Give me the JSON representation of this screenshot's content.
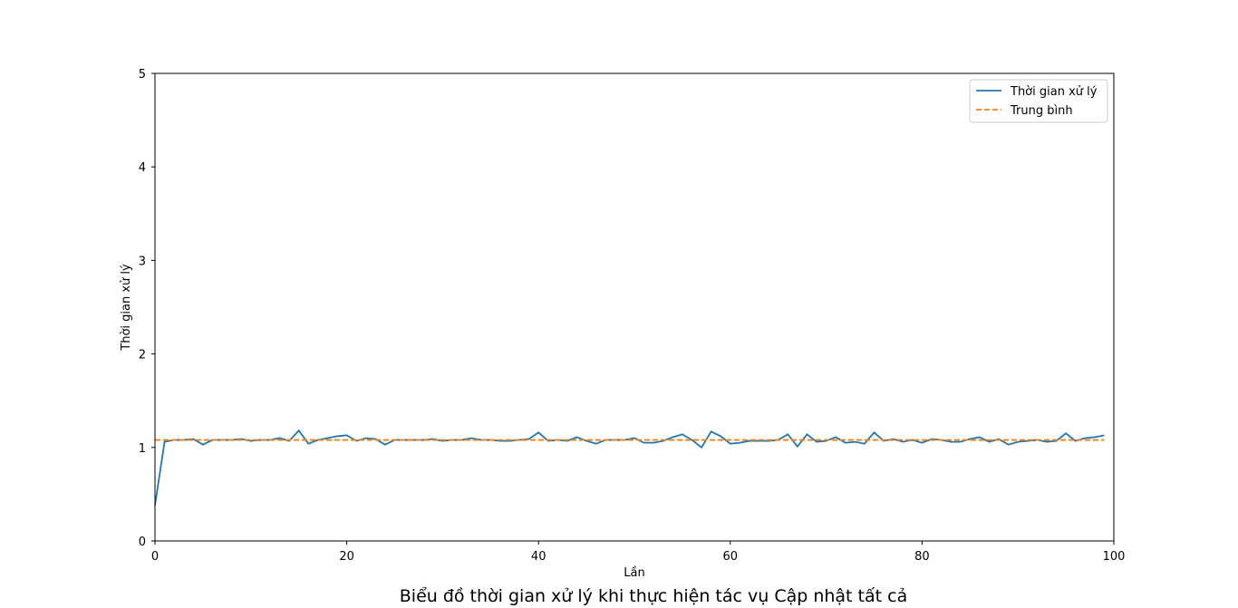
{
  "chart_data": {
    "type": "line",
    "title": "Biểu đồ thời gian xử lý khi thực hiện tác vụ Cập nhật tất cả",
    "xlabel": "Lần",
    "ylabel": "Thời gian xử lý",
    "xlim": [
      0,
      100
    ],
    "ylim": [
      0,
      5
    ],
    "xticks": [
      "0",
      "20",
      "40",
      "60",
      "80",
      "100"
    ],
    "yticks": [
      "0",
      "1",
      "2",
      "3",
      "4",
      "5"
    ],
    "grid": false,
    "legend_position": "top-right",
    "series": [
      {
        "name": "Thời gian xử lý",
        "style": "solid",
        "color": "#1f77b4",
        "x": [
          0,
          1,
          2,
          3,
          4,
          5,
          6,
          7,
          8,
          9,
          10,
          11,
          12,
          13,
          14,
          15,
          16,
          17,
          18,
          19,
          20,
          21,
          22,
          23,
          24,
          25,
          26,
          27,
          28,
          29,
          30,
          31,
          32,
          33,
          34,
          35,
          36,
          37,
          38,
          39,
          40,
          41,
          42,
          43,
          44,
          45,
          46,
          47,
          48,
          49,
          50,
          51,
          52,
          53,
          54,
          55,
          56,
          57,
          58,
          59,
          60,
          61,
          62,
          63,
          64,
          65,
          66,
          67,
          68,
          69,
          70,
          71,
          72,
          73,
          74,
          75,
          76,
          77,
          78,
          79,
          80,
          81,
          82,
          83,
          84,
          85,
          86,
          87,
          88,
          89,
          90,
          91,
          92,
          93,
          94,
          95,
          96,
          97,
          98,
          99
        ],
        "values": [
          0.38,
          1.06,
          1.08,
          1.08,
          1.09,
          1.03,
          1.08,
          1.08,
          1.08,
          1.09,
          1.07,
          1.08,
          1.08,
          1.1,
          1.07,
          1.18,
          1.04,
          1.08,
          1.1,
          1.12,
          1.13,
          1.07,
          1.1,
          1.09,
          1.03,
          1.08,
          1.08,
          1.08,
          1.08,
          1.09,
          1.07,
          1.08,
          1.08,
          1.1,
          1.08,
          1.08,
          1.07,
          1.07,
          1.08,
          1.09,
          1.16,
          1.07,
          1.08,
          1.07,
          1.11,
          1.07,
          1.04,
          1.08,
          1.08,
          1.08,
          1.1,
          1.05,
          1.05,
          1.07,
          1.11,
          1.14,
          1.08,
          1.0,
          1.17,
          1.12,
          1.04,
          1.05,
          1.07,
          1.07,
          1.07,
          1.08,
          1.14,
          1.01,
          1.14,
          1.06,
          1.07,
          1.11,
          1.05,
          1.06,
          1.04,
          1.16,
          1.07,
          1.09,
          1.06,
          1.08,
          1.05,
          1.09,
          1.08,
          1.06,
          1.06,
          1.09,
          1.11,
          1.06,
          1.09,
          1.03,
          1.06,
          1.07,
          1.08,
          1.06,
          1.07,
          1.15,
          1.07,
          1.1,
          1.11,
          1.13
        ]
      },
      {
        "name": "Trung bình",
        "style": "dashed",
        "color": "#ff7f0e",
        "x": [
          0,
          99
        ],
        "values": [
          1.08,
          1.08
        ]
      }
    ]
  }
}
